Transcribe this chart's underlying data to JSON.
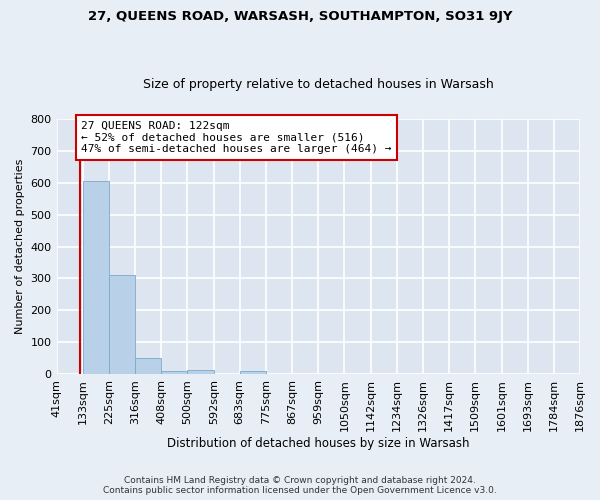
{
  "title": "27, QUEENS ROAD, WARSASH, SOUTHAMPTON, SO31 9JY",
  "subtitle": "Size of property relative to detached houses in Warsash",
  "xlabel": "Distribution of detached houses by size in Warsash",
  "ylabel": "Number of detached properties",
  "bar_color": "#b8d0e8",
  "bar_edge_color": "#7aaac8",
  "bins": [
    41,
    133,
    225,
    316,
    408,
    500,
    592,
    683,
    775,
    867,
    959,
    1050,
    1142,
    1234,
    1326,
    1417,
    1509,
    1601,
    1693,
    1784,
    1876
  ],
  "counts": [
    0,
    605,
    310,
    50,
    12,
    13,
    0,
    10,
    0,
    0,
    0,
    0,
    0,
    0,
    0,
    0,
    0,
    0,
    0,
    0
  ],
  "property_size": 122,
  "red_line_color": "#cc0000",
  "annotation_line1": "27 QUEENS ROAD: 122sqm",
  "annotation_line2": "← 52% of detached houses are smaller (516)",
  "annotation_line3": "47% of semi-detached houses are larger (464) →",
  "annotation_box_color": "#ffffff",
  "annotation_box_edge": "#cc0000",
  "ylim": [
    0,
    800
  ],
  "yticks": [
    0,
    100,
    200,
    300,
    400,
    500,
    600,
    700,
    800
  ],
  "fig_background_color": "#e8eef5",
  "plot_background_color": "#dde6f0",
  "grid_color": "#ffffff",
  "footer_line1": "Contains HM Land Registry data © Crown copyright and database right 2024.",
  "footer_line2": "Contains public sector information licensed under the Open Government Licence v3.0."
}
